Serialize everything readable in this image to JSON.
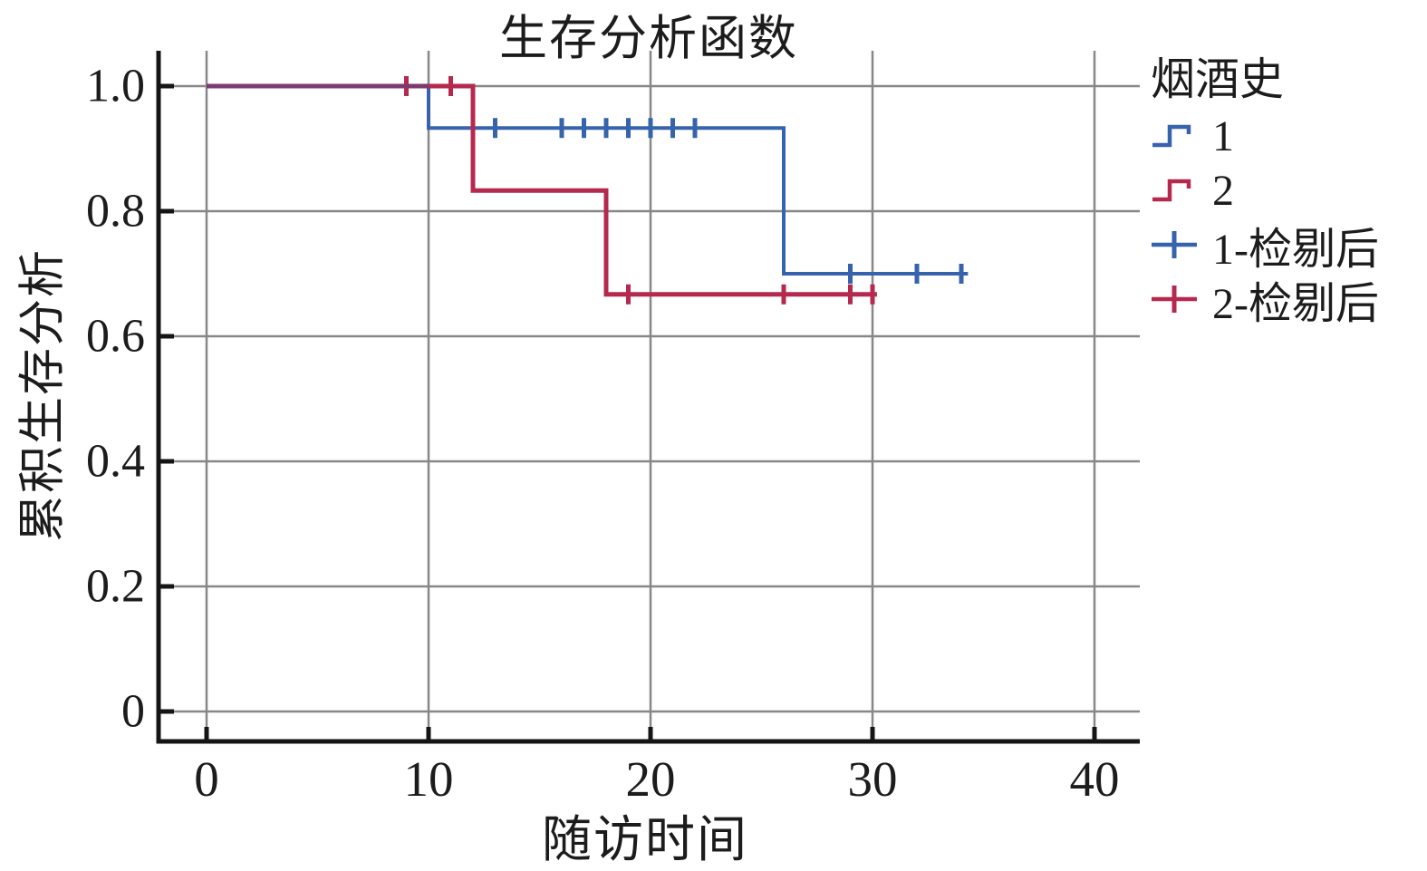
{
  "chart_data": {
    "type": "km_survival_step",
    "title": "生存分析函数",
    "grid": true,
    "legend_position": "right",
    "colors": {
      "group1": "#3663AC",
      "group2": "#B5294E",
      "overlap": "#7A3B72",
      "grid": "#878787",
      "axis": "#151515"
    },
    "x_axis": {
      "title": "随访时间",
      "tick_values": [
        0,
        10,
        20,
        30,
        40
      ],
      "tick_labels": [
        "0",
        "10",
        "20",
        "30",
        "40"
      ],
      "range": [
        0,
        40
      ]
    },
    "y_axis": {
      "title": "累积生存分析",
      "tick_values": [
        1.0,
        0.8,
        0.6,
        0.4,
        0.2,
        0
      ],
      "tick_labels": [
        "1.0",
        "0.8",
        "0.6",
        "0.4",
        "0.2",
        "0"
      ],
      "range": [
        0,
        1.0
      ]
    },
    "series": [
      {
        "name": "1",
        "color": "#3663AC",
        "line_width": 4,
        "steps": [
          [
            0,
            1.0
          ],
          [
            10,
            1.0
          ],
          [
            10,
            0.933
          ],
          [
            26,
            0.933
          ],
          [
            26,
            0.7
          ],
          [
            34.3,
            0.7
          ]
        ],
        "censored": [
          [
            12,
            0.933
          ],
          [
            13,
            0.933
          ],
          [
            16,
            0.933
          ],
          [
            17,
            0.933
          ],
          [
            18,
            0.933
          ],
          [
            19,
            0.933
          ],
          [
            20,
            0.933
          ],
          [
            21,
            0.933
          ],
          [
            22,
            0.933
          ],
          [
            29,
            0.7
          ],
          [
            32,
            0.7
          ],
          [
            34,
            0.7
          ]
        ]
      },
      {
        "name": "2",
        "color": "#B5294E",
        "line_width": 5,
        "steps": [
          [
            0,
            1.0
          ],
          [
            12,
            1.0
          ],
          [
            12,
            0.833
          ],
          [
            18,
            0.833
          ],
          [
            18,
            0.667
          ],
          [
            30.2,
            0.667
          ]
        ],
        "censored": [
          [
            9,
            1.0
          ],
          [
            11,
            1.0
          ],
          [
            19,
            0.667
          ],
          [
            26,
            0.667
          ],
          [
            29,
            0.667
          ],
          [
            30,
            0.667
          ]
        ]
      }
    ],
    "overlap_segment": {
      "from": [
        0,
        1.0
      ],
      "to": [
        10,
        1.0
      ],
      "color": "#7A3B72"
    },
    "legend": {
      "title": "烟酒史",
      "items": [
        {
          "label": "1",
          "symbol": "step",
          "color": "#3663AC"
        },
        {
          "label": "2",
          "symbol": "step",
          "color": "#B5294E"
        },
        {
          "label": "1-检剔后",
          "symbol": "censor",
          "color": "#3663AC"
        },
        {
          "label": "2-检剔后",
          "symbol": "censor",
          "color": "#B5294E"
        }
      ]
    }
  }
}
